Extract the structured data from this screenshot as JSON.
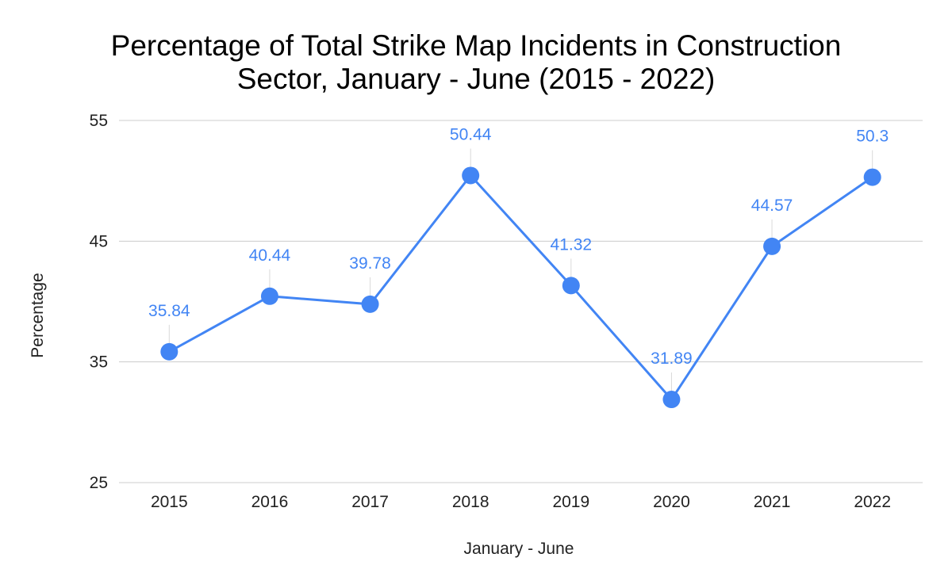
{
  "chart_data": {
    "type": "line",
    "title_lines": [
      "Percentage of Total Strike Map Incidents in Construction",
      "Sector, January - June (2015 - 2022)"
    ],
    "xlabel": "January - June",
    "ylabel": "Percentage",
    "categories": [
      "2015",
      "2016",
      "2017",
      "2018",
      "2019",
      "2020",
      "2021",
      "2022"
    ],
    "series": [
      {
        "values": [
          35.84,
          40.44,
          39.78,
          50.44,
          41.32,
          31.89,
          44.57,
          50.3
        ],
        "value_labels": [
          "35.84",
          "40.44",
          "39.78",
          "50.44",
          "41.32",
          "31.89",
          "44.57",
          "50.3"
        ],
        "color": "#4285f4"
      }
    ],
    "ylim": [
      25,
      55
    ],
    "yticks": [
      "25",
      "35",
      "45",
      "55"
    ],
    "grid": true,
    "legend": "none",
    "label_color": "#4285f4",
    "text_color": "#222222"
  }
}
